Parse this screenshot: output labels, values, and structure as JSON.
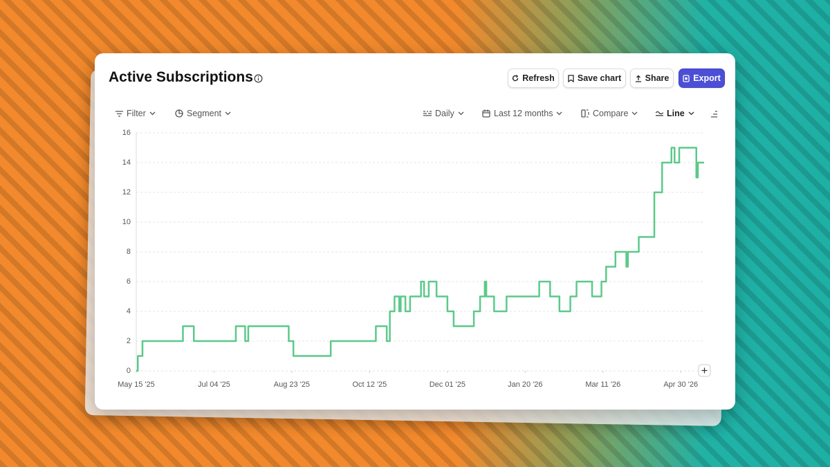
{
  "header": {
    "title": "Active Subscriptions",
    "actions": [
      "Refresh",
      "Save chart",
      "Share",
      "Export"
    ]
  },
  "toolbar": {
    "left": [
      "Filter",
      "Segment"
    ],
    "right": [
      "Daily",
      "Last 12 months",
      "Compare",
      "Line"
    ]
  },
  "chart_data": {
    "type": "line",
    "step": "after",
    "color": "#5cc98a",
    "grid": true,
    "x": [
      "May 15 '25",
      "May 16 '25",
      "May 19 '25",
      "Jun 14 '25",
      "Jun 21 '25",
      "Jul 18 '25",
      "Jul 24 '25",
      "Jul 26 '25",
      "Aug 21 '25",
      "Aug 24 '25",
      "Sep 17 '25",
      "Oct 16 '25",
      "Oct 23 '25",
      "Oct 25 '25",
      "Oct 28 '25",
      "Oct 31 '25",
      "Nov 01 '25",
      "Nov 04 '25",
      "Nov 07 '25",
      "Nov 14 '25",
      "Nov 16 '25",
      "Nov 19 '25",
      "Nov 24 '25",
      "Dec 01 '25",
      "Dec 05 '25",
      "Dec 18 '25",
      "Dec 22 '25",
      "Dec 25 '25",
      "Dec 26 '25",
      "Dec 31 '25",
      "Jan 08 '26",
      "Jan 29 '26",
      "Feb 05 '26",
      "Feb 11 '26",
      "Feb 18 '26",
      "Feb 22 '26",
      "Mar 04 '26",
      "Mar 10 '26",
      "Mar 13 '26",
      "Mar 19 '26",
      "Mar 26 '26",
      "Mar 27 '26",
      "Apr 03 '26",
      "Apr 13 '26",
      "Apr 18 '26",
      "Apr 24 '26",
      "Apr 26 '26",
      "Apr 29 '26",
      "May 10 '26",
      "May 11 '26",
      "May 15 '26"
    ],
    "values": [
      0,
      1,
      2,
      3,
      2,
      3,
      2,
      3,
      2,
      1,
      2,
      3,
      2,
      4,
      5,
      4,
      5,
      4,
      5,
      6,
      5,
      6,
      5,
      4,
      3,
      4,
      5,
      6,
      5,
      4,
      5,
      6,
      5,
      4,
      5,
      6,
      5,
      6,
      7,
      8,
      7,
      8,
      9,
      12,
      14,
      15,
      14,
      15,
      13,
      14,
      14
    ],
    "xlim": [
      "May 15 '25",
      "May 15 '26"
    ],
    "xticks": [
      "May 15 '25",
      "Jul 04 '25",
      "Aug 23 '25",
      "Oct 12 '25",
      "Dec 01 '25",
      "Jan 20 '26",
      "Mar 11 '26",
      "Apr 30 '26"
    ],
    "ylim": [
      0,
      16
    ],
    "yticks": [
      0,
      2,
      4,
      6,
      8,
      10,
      12,
      14,
      16
    ]
  }
}
